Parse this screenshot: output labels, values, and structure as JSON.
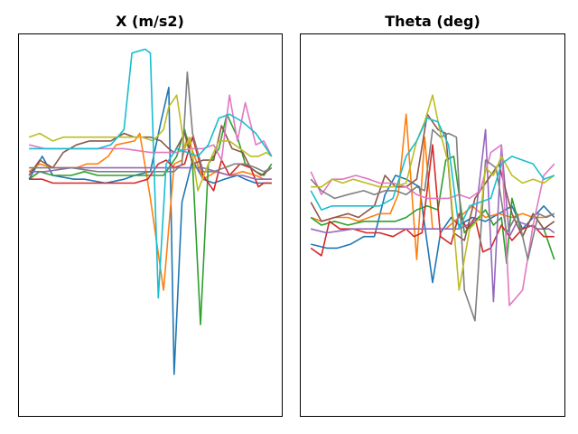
{
  "colors": [
    "#1f77b4",
    "#ff7f0e",
    "#2ca02c",
    "#d62728",
    "#9467bd",
    "#8c564b",
    "#e377c2",
    "#7f7f7f",
    "#bcbd22",
    "#17becf"
  ],
  "chart_data": [
    {
      "type": "line",
      "title": "X (m/s2)",
      "xlabel": "",
      "ylabel": "",
      "xlim": [
        0,
        1
      ],
      "ylim": [
        0,
        1
      ],
      "grid": false,
      "axis_ticks": "hidden",
      "series": [
        {
          "color_index": 0,
          "x": [
            0.04,
            0.09,
            0.13,
            0.21,
            0.25,
            0.33,
            0.4,
            0.44,
            0.5,
            0.54,
            0.57,
            0.59,
            0.62,
            0.66,
            0.7,
            0.74,
            0.78,
            0.83,
            0.86,
            0.9,
            0.94,
            0.96
          ],
          "y": [
            0.62,
            0.68,
            0.63,
            0.62,
            0.62,
            0.61,
            0.62,
            0.63,
            0.64,
            0.77,
            0.86,
            0.11,
            0.56,
            0.67,
            0.62,
            0.61,
            0.62,
            0.63,
            0.62,
            0.61,
            0.61,
            0.61
          ]
        },
        {
          "color_index": 1,
          "x": [
            0.04,
            0.08,
            0.13,
            0.22,
            0.26,
            0.3,
            0.34,
            0.37,
            0.44,
            0.46,
            0.5,
            0.55,
            0.59,
            0.62,
            0.64,
            0.7,
            0.75,
            0.8,
            0.85,
            0.9,
            0.93,
            0.96
          ],
          "y": [
            0.64,
            0.66,
            0.65,
            0.65,
            0.66,
            0.66,
            0.68,
            0.71,
            0.72,
            0.74,
            0.57,
            0.33,
            0.66,
            0.67,
            0.73,
            0.62,
            0.64,
            0.63,
            0.64,
            0.63,
            0.62,
            0.62
          ]
        },
        {
          "color_index": 2,
          "x": [
            0.04,
            0.08,
            0.13,
            0.2,
            0.25,
            0.3,
            0.34,
            0.4,
            0.45,
            0.5,
            0.55,
            0.6,
            0.63,
            0.66,
            0.69,
            0.72,
            0.76,
            0.79,
            0.83,
            0.86,
            0.9,
            0.93,
            0.96
          ],
          "y": [
            0.62,
            0.64,
            0.63,
            0.63,
            0.64,
            0.63,
            0.63,
            0.63,
            0.63,
            0.63,
            0.63,
            0.68,
            0.75,
            0.66,
            0.24,
            0.66,
            0.7,
            0.79,
            0.73,
            0.66,
            0.64,
            0.63,
            0.66
          ]
        },
        {
          "color_index": 3,
          "x": [
            0.04,
            0.09,
            0.13,
            0.2,
            0.25,
            0.3,
            0.35,
            0.4,
            0.44,
            0.49,
            0.53,
            0.56,
            0.59,
            0.63,
            0.66,
            0.7,
            0.74,
            0.77,
            0.8,
            0.84,
            0.88,
            0.91,
            0.93,
            0.96
          ],
          "y": [
            0.62,
            0.62,
            0.61,
            0.61,
            0.61,
            0.61,
            0.61,
            0.61,
            0.61,
            0.62,
            0.66,
            0.67,
            0.65,
            0.66,
            0.73,
            0.63,
            0.59,
            0.67,
            0.63,
            0.66,
            0.65,
            0.6,
            0.61,
            0.61
          ]
        },
        {
          "color_index": 4,
          "x": [
            0.04,
            0.1,
            0.2,
            0.3,
            0.4,
            0.45,
            0.5,
            0.55,
            0.6,
            0.65,
            0.7,
            0.75,
            0.8,
            0.85,
            0.9,
            0.96
          ],
          "y": [
            0.64,
            0.64,
            0.65,
            0.65,
            0.65,
            0.65,
            0.65,
            0.65,
            0.65,
            0.65,
            0.65,
            0.64,
            0.63,
            0.63,
            0.62,
            0.62
          ]
        },
        {
          "color_index": 5,
          "x": [
            0.04,
            0.08,
            0.13,
            0.17,
            0.22,
            0.27,
            0.31,
            0.35,
            0.4,
            0.44,
            0.5,
            0.54,
            0.57,
            0.59,
            0.63,
            0.66,
            0.7,
            0.74,
            0.77,
            0.81,
            0.85,
            0.88,
            0.92,
            0.96
          ],
          "y": [
            0.63,
            0.67,
            0.65,
            0.69,
            0.71,
            0.72,
            0.72,
            0.72,
            0.74,
            0.73,
            0.73,
            0.72,
            0.7,
            0.69,
            0.74,
            0.66,
            0.67,
            0.67,
            0.76,
            0.7,
            0.69,
            0.65,
            0.63,
            0.65
          ]
        },
        {
          "color_index": 6,
          "x": [
            0.04,
            0.1,
            0.2,
            0.3,
            0.4,
            0.5,
            0.55,
            0.6,
            0.65,
            0.7,
            0.74,
            0.77,
            0.8,
            0.83,
            0.86,
            0.9,
            0.93,
            0.96
          ],
          "y": [
            0.71,
            0.7,
            0.7,
            0.7,
            0.7,
            0.69,
            0.69,
            0.69,
            0.7,
            0.7,
            0.71,
            0.67,
            0.84,
            0.72,
            0.82,
            0.71,
            0.72,
            0.68
          ]
        },
        {
          "color_index": 7,
          "x": [
            0.04,
            0.1,
            0.2,
            0.3,
            0.4,
            0.45,
            0.5,
            0.53,
            0.56,
            0.59,
            0.62,
            0.64,
            0.66,
            0.7,
            0.74,
            0.78,
            0.82,
            0.86,
            0.9,
            0.93,
            0.96
          ],
          "y": [
            0.65,
            0.65,
            0.65,
            0.64,
            0.64,
            0.64,
            0.64,
            0.64,
            0.64,
            0.64,
            0.66,
            0.9,
            0.74,
            0.64,
            0.64,
            0.65,
            0.66,
            0.66,
            0.65,
            0.64,
            0.65
          ]
        },
        {
          "color_index": 8,
          "x": [
            0.04,
            0.08,
            0.13,
            0.17,
            0.22,
            0.3,
            0.38,
            0.43,
            0.47,
            0.51,
            0.55,
            0.57,
            0.6,
            0.63,
            0.65,
            0.68,
            0.72,
            0.76,
            0.8,
            0.84,
            0.88,
            0.91,
            0.94,
            0.96
          ],
          "y": [
            0.73,
            0.74,
            0.72,
            0.73,
            0.73,
            0.73,
            0.73,
            0.73,
            0.73,
            0.72,
            0.75,
            0.81,
            0.84,
            0.7,
            0.73,
            0.59,
            0.66,
            0.72,
            0.72,
            0.7,
            0.68,
            0.68,
            0.69,
            0.68
          ]
        },
        {
          "color_index": 9,
          "x": [
            0.04,
            0.1,
            0.2,
            0.3,
            0.35,
            0.4,
            0.43,
            0.48,
            0.5,
            0.53,
            0.56,
            0.6,
            0.64,
            0.68,
            0.72,
            0.76,
            0.8,
            0.85,
            0.9,
            0.93,
            0.96
          ],
          "y": [
            0.7,
            0.7,
            0.7,
            0.7,
            0.71,
            0.75,
            0.95,
            0.96,
            0.95,
            0.31,
            0.66,
            0.7,
            0.69,
            0.68,
            0.71,
            0.78,
            0.79,
            0.77,
            0.74,
            0.71,
            0.68
          ]
        }
      ]
    },
    {
      "type": "line",
      "title": "Theta (deg)",
      "xlabel": "",
      "ylabel": "",
      "xlim": [
        0,
        1
      ],
      "ylim": [
        0,
        1
      ],
      "grid": false,
      "axis_ticks": "hidden",
      "series": [
        {
          "color_index": 0,
          "x": [
            0.04,
            0.1,
            0.14,
            0.19,
            0.24,
            0.28,
            0.32,
            0.36,
            0.4,
            0.45,
            0.5,
            0.53,
            0.57,
            0.6,
            0.65,
            0.7,
            0.75,
            0.8,
            0.84,
            0.88,
            0.92,
            0.96
          ],
          "y": [
            0.45,
            0.44,
            0.44,
            0.45,
            0.47,
            0.47,
            0.58,
            0.63,
            0.62,
            0.6,
            0.35,
            0.48,
            0.52,
            0.5,
            0.52,
            0.51,
            0.53,
            0.55,
            0.49,
            0.52,
            0.55,
            0.52
          ]
        },
        {
          "color_index": 1,
          "x": [
            0.04,
            0.08,
            0.13,
            0.18,
            0.22,
            0.26,
            0.3,
            0.34,
            0.37,
            0.4,
            0.44,
            0.47,
            0.5,
            0.55,
            0.6,
            0.65,
            0.7,
            0.75,
            0.8,
            0.84,
            0.88,
            0.92,
            0.96
          ],
          "y": [
            0.52,
            0.51,
            0.52,
            0.52,
            0.51,
            0.52,
            0.53,
            0.53,
            0.58,
            0.79,
            0.41,
            0.73,
            0.49,
            0.49,
            0.52,
            0.55,
            0.52,
            0.53,
            0.52,
            0.53,
            0.52,
            0.52,
            0.53
          ]
        },
        {
          "color_index": 2,
          "x": [
            0.04,
            0.08,
            0.13,
            0.18,
            0.24,
            0.3,
            0.36,
            0.4,
            0.44,
            0.48,
            0.52,
            0.55,
            0.58,
            0.62,
            0.66,
            0.7,
            0.73,
            0.76,
            0.78,
            0.8,
            0.84,
            0.88,
            0.92,
            0.96
          ],
          "y": [
            0.52,
            0.5,
            0.51,
            0.5,
            0.51,
            0.51,
            0.51,
            0.52,
            0.54,
            0.55,
            0.54,
            0.67,
            0.68,
            0.48,
            0.51,
            0.54,
            0.5,
            0.52,
            0.4,
            0.57,
            0.47,
            0.53,
            0.49,
            0.41
          ]
        },
        {
          "color_index": 3,
          "x": [
            0.04,
            0.08,
            0.11,
            0.15,
            0.2,
            0.25,
            0.3,
            0.35,
            0.4,
            0.43,
            0.46,
            0.5,
            0.53,
            0.57,
            0.6,
            0.63,
            0.66,
            0.69,
            0.72,
            0.76,
            0.8,
            0.84,
            0.88,
            0.92,
            0.96
          ],
          "y": [
            0.44,
            0.42,
            0.51,
            0.49,
            0.49,
            0.48,
            0.48,
            0.47,
            0.49,
            0.47,
            0.48,
            0.71,
            0.47,
            0.45,
            0.53,
            0.49,
            0.52,
            0.43,
            0.44,
            0.5,
            0.46,
            0.49,
            0.5,
            0.47,
            0.47
          ]
        },
        {
          "color_index": 4,
          "x": [
            0.04,
            0.1,
            0.2,
            0.3,
            0.4,
            0.5,
            0.6,
            0.66,
            0.7,
            0.73,
            0.76,
            0.79,
            0.82,
            0.86,
            0.9,
            0.94,
            0.96
          ],
          "y": [
            0.49,
            0.48,
            0.49,
            0.49,
            0.49,
            0.49,
            0.49,
            0.51,
            0.75,
            0.3,
            0.71,
            0.47,
            0.51,
            0.5,
            0.49,
            0.49,
            0.48
          ]
        },
        {
          "color_index": 5,
          "x": [
            0.04,
            0.08,
            0.13,
            0.18,
            0.22,
            0.28,
            0.32,
            0.36,
            0.4,
            0.44,
            0.48,
            0.52,
            0.55,
            0.58,
            0.62,
            0.66,
            0.7,
            0.75,
            0.8,
            0.84,
            0.88,
            0.92,
            0.96
          ],
          "y": [
            0.56,
            0.51,
            0.52,
            0.53,
            0.52,
            0.55,
            0.63,
            0.6,
            0.6,
            0.62,
            0.79,
            0.75,
            0.74,
            0.48,
            0.46,
            0.57,
            0.61,
            0.66,
            0.53,
            0.47,
            0.53,
            0.49,
            0.51
          ]
        },
        {
          "color_index": 6,
          "x": [
            0.04,
            0.08,
            0.12,
            0.16,
            0.21,
            0.26,
            0.3,
            0.35,
            0.4,
            0.44,
            0.48,
            0.52,
            0.56,
            0.6,
            0.64,
            0.68,
            0.72,
            0.76,
            0.79,
            0.84,
            0.88,
            0.92,
            0.96
          ],
          "y": [
            0.64,
            0.58,
            0.62,
            0.62,
            0.63,
            0.62,
            0.61,
            0.61,
            0.6,
            0.58,
            0.57,
            0.57,
            0.57,
            0.58,
            0.57,
            0.59,
            0.69,
            0.71,
            0.29,
            0.33,
            0.5,
            0.63,
            0.66
          ]
        },
        {
          "color_index": 7,
          "x": [
            0.04,
            0.08,
            0.13,
            0.18,
            0.24,
            0.28,
            0.32,
            0.36,
            0.4,
            0.44,
            0.47,
            0.5,
            0.53,
            0.56,
            0.59,
            0.62,
            0.66,
            0.7,
            0.74,
            0.78,
            0.82,
            0.86,
            0.9,
            0.93,
            0.96
          ],
          "y": [
            0.62,
            0.59,
            0.57,
            0.58,
            0.59,
            0.58,
            0.59,
            0.59,
            0.58,
            0.6,
            0.59,
            0.75,
            0.73,
            0.74,
            0.73,
            0.33,
            0.25,
            0.67,
            0.65,
            0.48,
            0.53,
            0.41,
            0.53,
            0.52,
            0.53
          ]
        },
        {
          "color_index": 8,
          "x": [
            0.04,
            0.08,
            0.12,
            0.16,
            0.2,
            0.25,
            0.3,
            0.35,
            0.4,
            0.44,
            0.47,
            0.5,
            0.53,
            0.56,
            0.6,
            0.64,
            0.68,
            0.7,
            0.73,
            0.76,
            0.8,
            0.84,
            0.88,
            0.92,
            0.96
          ],
          "y": [
            0.6,
            0.6,
            0.62,
            0.61,
            0.62,
            0.61,
            0.6,
            0.6,
            0.61,
            0.72,
            0.77,
            0.84,
            0.74,
            0.66,
            0.33,
            0.49,
            0.52,
            0.65,
            0.63,
            0.68,
            0.63,
            0.61,
            0.62,
            0.61,
            0.63
          ]
        },
        {
          "color_index": 9,
          "x": [
            0.04,
            0.08,
            0.12,
            0.16,
            0.2,
            0.25,
            0.3,
            0.35,
            0.4,
            0.44,
            0.48,
            0.52,
            0.56,
            0.6,
            0.64,
            0.68,
            0.72,
            0.76,
            0.8,
            0.84,
            0.88,
            0.92,
            0.96
          ],
          "y": [
            0.59,
            0.54,
            0.55,
            0.55,
            0.55,
            0.55,
            0.55,
            0.57,
            0.68,
            0.72,
            0.78,
            0.77,
            0.71,
            0.49,
            0.55,
            0.56,
            0.57,
            0.66,
            0.68,
            0.67,
            0.66,
            0.62,
            0.63
          ]
        }
      ]
    }
  ]
}
